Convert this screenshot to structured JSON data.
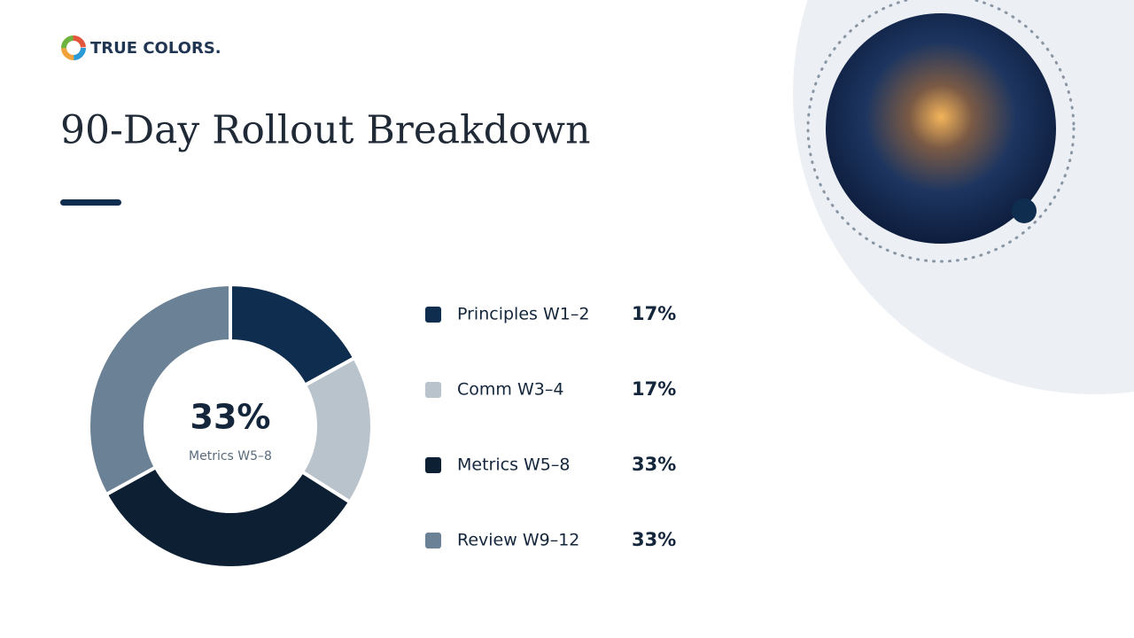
{
  "brand": "TRUE COLORS.",
  "chart_data": {
    "type": "pie",
    "title": "90-Day Rollout Breakdown",
    "categories": [
      "Principles W1–2",
      "Comm W3–4",
      "Metrics W5–8",
      "Review W9–12"
    ],
    "values": [
      17,
      17,
      33,
      33
    ],
    "value_labels": [
      "17%",
      "17%",
      "33%",
      "33%"
    ],
    "colors": [
      "#0f2d4f",
      "#b9c3cc",
      "#0c1f33",
      "#6b8196"
    ],
    "donut": true,
    "highlight": 2
  }
}
